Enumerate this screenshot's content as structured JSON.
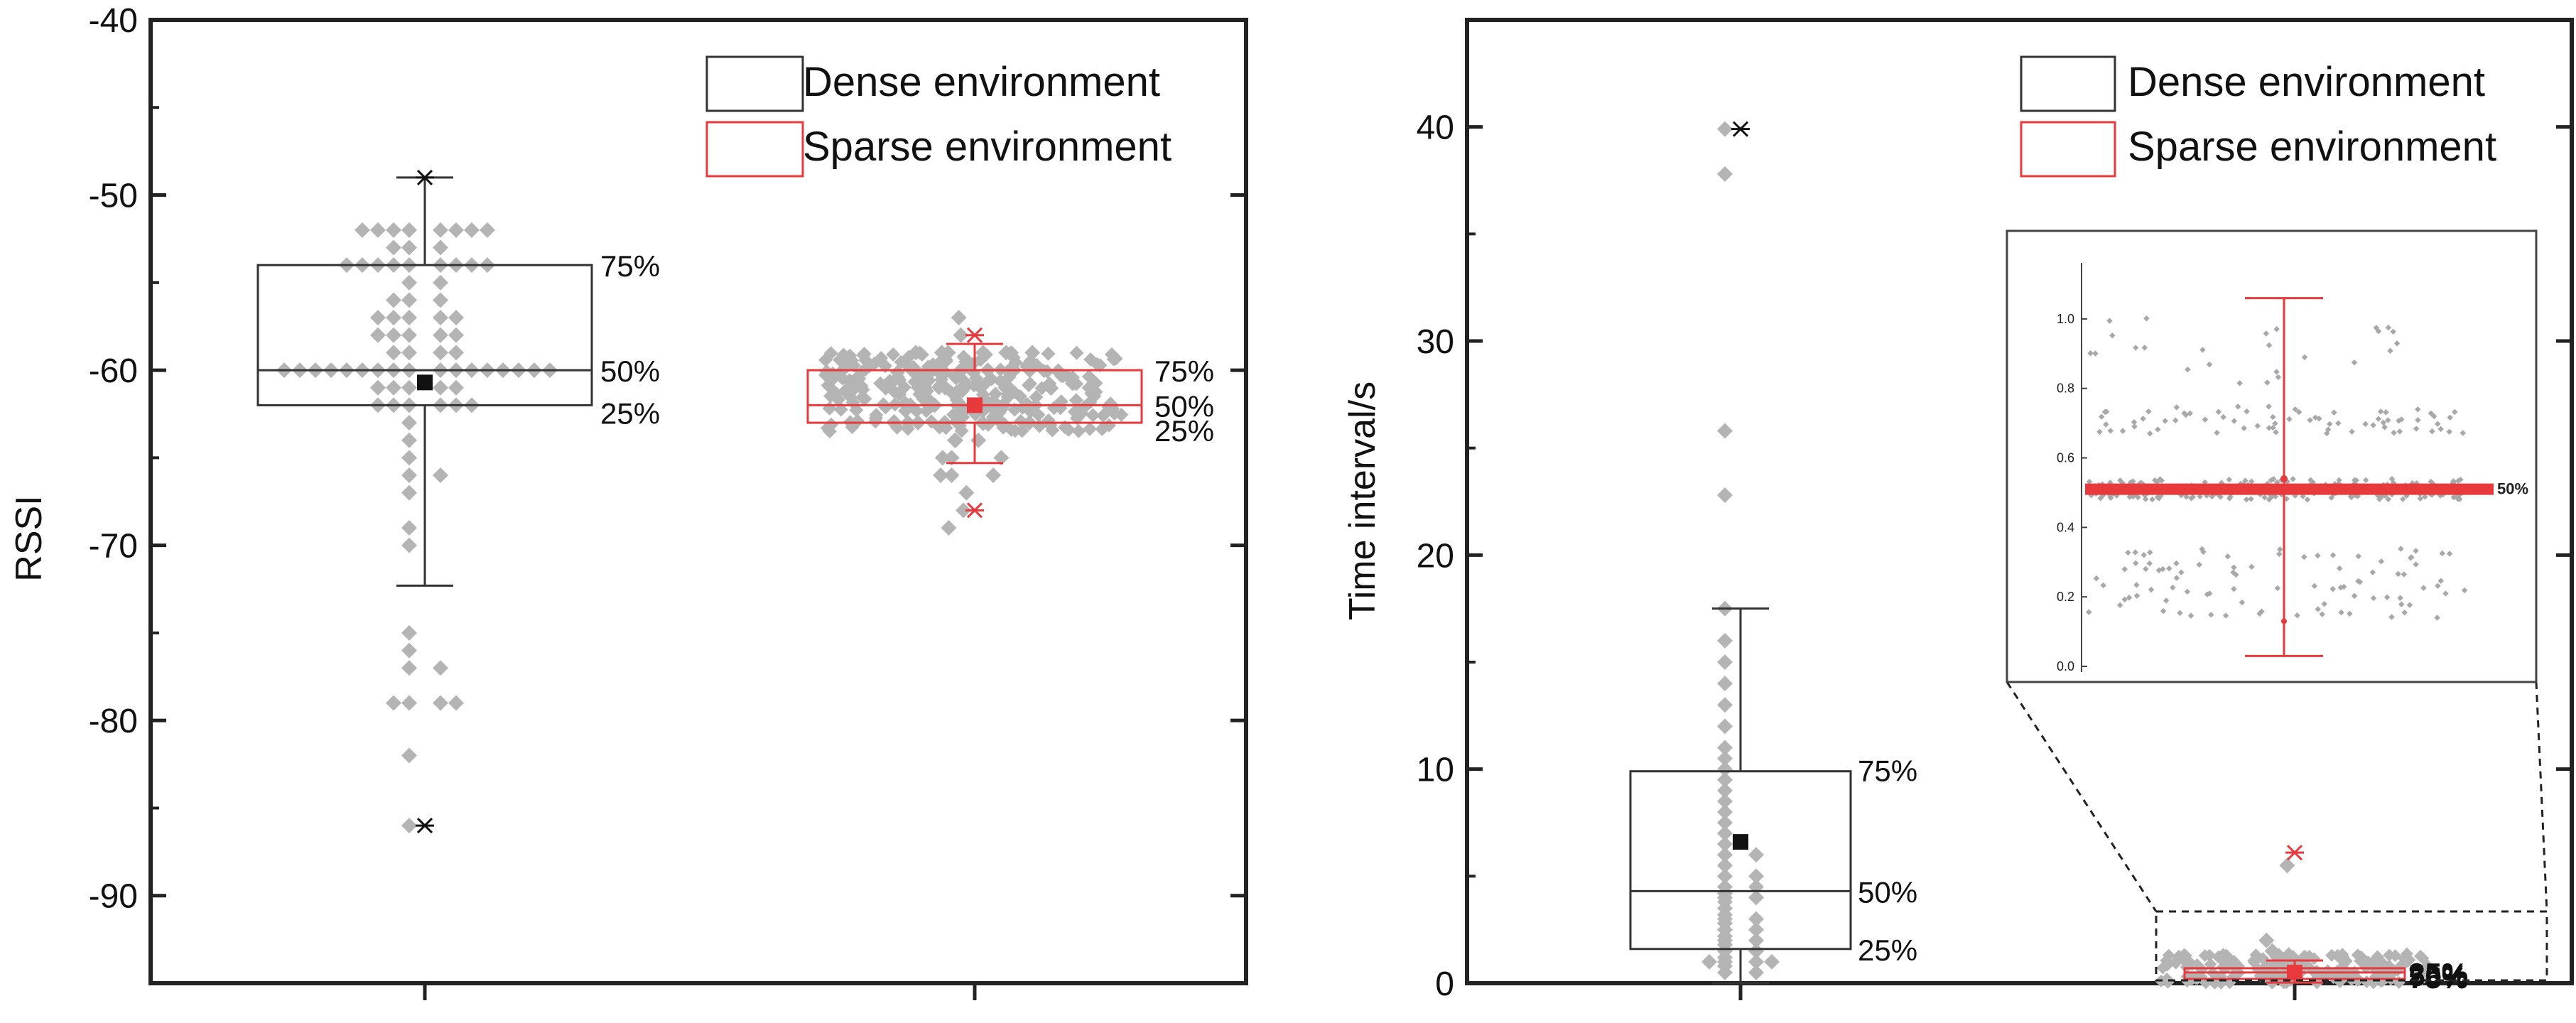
{
  "chart_data": [
    {
      "type": "box",
      "ylabel": "RSSI",
      "ylim": [
        -95,
        -40
      ],
      "yticks": [
        -40,
        -50,
        -60,
        -70,
        -80,
        -90
      ],
      "legend": {
        "placement": "top-right",
        "entries": [
          "Dense environment",
          "Sparse environment"
        ]
      },
      "colors": {
        "dense": "#333333",
        "sparse": "#e8393d",
        "points": "#b4b4b4"
      },
      "series": [
        {
          "name": "Dense environment",
          "q1": -62,
          "median": -60,
          "q3": -54,
          "mean": -60.7,
          "whisker_low": -72.3,
          "whisker_high": -49,
          "max_marker": -49,
          "min_marker": -86,
          "box_labels": [
            "75%",
            "50%",
            "25%"
          ],
          "points": [
            -52,
            -52,
            -52,
            -52,
            -52,
            -52,
            -52,
            -52,
            -53,
            -53,
            -53,
            -54,
            -54,
            -54,
            -54,
            -54,
            -54,
            -54,
            -54,
            -54,
            -55,
            -55,
            -56,
            -56,
            -56,
            -57,
            -57,
            -57,
            -57,
            -57,
            -58,
            -58,
            -58,
            -58,
            -58,
            -59,
            -59,
            -59,
            -59,
            -60,
            -60,
            -60,
            -60,
            -60,
            -60,
            -60,
            -60,
            -60,
            -60,
            -60,
            -60,
            -60,
            -60,
            -60,
            -60,
            -60,
            -61,
            -61,
            -61,
            -61,
            -61,
            -62,
            -62,
            -62,
            -62,
            -62,
            -62,
            -63,
            -64,
            -65,
            -66,
            -66,
            -67,
            -69,
            -70,
            -75,
            -76,
            -77,
            -77,
            -79,
            -79,
            -79,
            -79,
            -82,
            -86
          ]
        },
        {
          "name": "Sparse environment",
          "q1": -63,
          "median": -62,
          "q3": -60,
          "mean": -62,
          "whisker_low": -65.3,
          "whisker_high": -58.5,
          "max_marker": -58,
          "min_marker": -68,
          "box_labels": [
            "75%",
            "50%",
            "25%"
          ],
          "points": [
            -57,
            -58,
            -59,
            -59,
            -59,
            -59,
            -59,
            -59,
            -60,
            -60,
            -60,
            -60,
            -60,
            -60,
            -60,
            -60,
            -61,
            -61,
            -61,
            -61,
            -61,
            -61,
            -61,
            -61,
            -61,
            -62,
            -62,
            -62,
            -62,
            -62,
            -62,
            -62,
            -62,
            -62,
            -63,
            -63,
            -63,
            -63,
            -63,
            -63,
            -63,
            -64,
            -64,
            -64,
            -65,
            -65,
            -65,
            -66,
            -66,
            -66,
            -67,
            -68,
            -69
          ]
        }
      ]
    },
    {
      "type": "box",
      "ylabel": "Time interval/s",
      "ylim": [
        0,
        45
      ],
      "yticks": [
        0,
        10,
        20,
        30,
        40
      ],
      "legend": {
        "placement": "top-right",
        "entries": [
          "Dense environment",
          "Sparse environment"
        ]
      },
      "colors": {
        "dense": "#333333",
        "sparse": "#e8393d",
        "points": "#b4b4b4"
      },
      "series": [
        {
          "name": "Dense environment",
          "q1": 1.6,
          "median": 4.3,
          "q3": 9.9,
          "mean": 6.6,
          "whisker_low": 0,
          "whisker_high": 17.5,
          "max_marker": 39.9,
          "min_marker": 0,
          "box_labels": [
            "75%",
            "50%",
            "25%"
          ],
          "points": [
            0.5,
            0.5,
            0.8,
            1,
            1,
            1,
            1,
            1.2,
            1.5,
            1.5,
            1.8,
            2,
            2,
            2.2,
            2.5,
            2.5,
            2.8,
            3,
            3,
            3.2,
            3.5,
            3.8,
            4,
            4,
            4.2,
            4.5,
            4.5,
            5,
            5,
            5.5,
            6,
            6,
            6.5,
            7,
            7.5,
            8,
            8.5,
            9,
            9.5,
            10,
            10.5,
            11,
            12,
            13,
            14,
            15,
            16,
            17.5,
            22.8,
            25.8,
            37.8,
            39.9
          ]
        },
        {
          "name": "Sparse environment",
          "q1": 0.2,
          "median": 0.5,
          "q3": 0.7,
          "mean": 0.5,
          "whisker_low": 0.03,
          "whisker_high": 1.06,
          "max_marker": 6.1,
          "min_marker": 0,
          "box_labels": [
            "75%",
            "50%",
            "25%"
          ],
          "points": [
            0.1,
            0.2,
            0.3,
            0.4,
            0.5,
            0.5,
            0.5,
            0.6,
            0.7,
            0.8,
            0.9,
            1.0,
            1.2,
            1.5,
            2.0,
            5.5
          ]
        }
      ],
      "inset": {
        "ylim": [
          0,
          1.1
        ],
        "yticks": [
          "0.0",
          "0.2",
          "0.4",
          "0.6",
          "0.8",
          "1.0"
        ],
        "label": "50%",
        "median": 0.51,
        "mean": 0.54,
        "whisker_low": 0.03,
        "whisker_high": 1.06,
        "lower_marker": 0.13,
        "point_bands": [
          {
            "center": 0.51,
            "spread": 0.03,
            "count": 220
          },
          {
            "center": 0.71,
            "spread": 0.04,
            "count": 70
          },
          {
            "center": 0.24,
            "spread": 0.1,
            "count": 90
          },
          {
            "center": 0.91,
            "spread": 0.1,
            "count": 25
          }
        ]
      }
    }
  ]
}
